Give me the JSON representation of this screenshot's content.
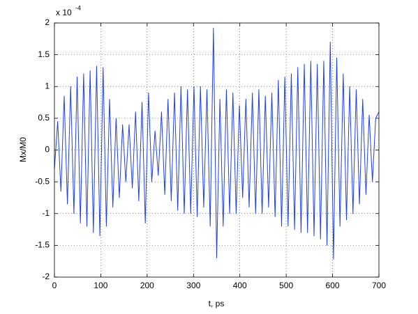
{
  "chart_data": {
    "type": "line",
    "xlabel": "t, ps",
    "ylabel": "Mx/M0",
    "y_multiplier": "x 10",
    "y_multiplier_exponent": "-4",
    "x": [
      0,
      7,
      14,
      21,
      28,
      35,
      42,
      49,
      56,
      63,
      70,
      77,
      84,
      91,
      98,
      105,
      112,
      119,
      126,
      133,
      140,
      147,
      154,
      161,
      168,
      175,
      182,
      189,
      196,
      203,
      210,
      217,
      224,
      231,
      238,
      245,
      252,
      259,
      266,
      273,
      280,
      287,
      294,
      301,
      308,
      315,
      322,
      329,
      336,
      343,
      350,
      357,
      364,
      371,
      378,
      385,
      392,
      399,
      406,
      413,
      420,
      427,
      434,
      441,
      448,
      455,
      462,
      469,
      476,
      483,
      490,
      497,
      504,
      511,
      518,
      525,
      532,
      539,
      546,
      553,
      560,
      567,
      574,
      581,
      588,
      595,
      602,
      609,
      616,
      623,
      630,
      637,
      644,
      651,
      658,
      665,
      672,
      679,
      686,
      693,
      700
    ],
    "series": [
      {
        "color": "#2040e0",
        "values": [
          -0.3,
          0.45,
          -0.65,
          0.85,
          -0.85,
          1.0,
          -1.0,
          1.15,
          -1.15,
          1.2,
          -1.2,
          1.25,
          -1.3,
          1.32,
          -1.35,
          1.3,
          -1.2,
          0.8,
          -0.9,
          0.5,
          -0.75,
          0.4,
          -0.5,
          0.4,
          -0.6,
          0.6,
          -0.8,
          0.75,
          -1.15,
          0.9,
          -0.5,
          0.3,
          -0.4,
          0.6,
          -0.7,
          0.8,
          -0.8,
          0.9,
          -0.95,
          1.0,
          -1.0,
          0.95,
          -1.0,
          1.0,
          -1.05,
          1.0,
          -0.9,
          0.95,
          -1.2,
          1.92,
          -1.7,
          0.8,
          -1.2,
          0.95,
          -1.0,
          0.9,
          -1.0,
          0.7,
          -0.75,
          0.8,
          -0.9,
          0.9,
          -1.0,
          0.95,
          -1.0,
          0.85,
          -0.9,
          0.9,
          -1.05,
          1.1,
          -1.2,
          1.15,
          -1.2,
          1.2,
          -1.25,
          1.3,
          -1.3,
          1.35,
          -1.3,
          1.4,
          -1.35,
          1.35,
          -1.4,
          1.4,
          -1.5,
          1.7,
          -1.72,
          1.45,
          -1.2,
          1.2,
          -1.1,
          1.0,
          -1.0,
          0.95,
          -0.85,
          0.8,
          -0.7,
          0.55,
          -0.5,
          0.5,
          0.6
        ]
      }
    ],
    "xlim": [
      0,
      700
    ],
    "xticks": [
      0,
      100,
      200,
      300,
      400,
      500,
      600,
      700
    ],
    "ylim": [
      -2,
      2
    ],
    "yticks": [
      -2,
      -1.5,
      -1,
      -0.5,
      0,
      0.5,
      1,
      1.5,
      2
    ],
    "grid": true
  }
}
